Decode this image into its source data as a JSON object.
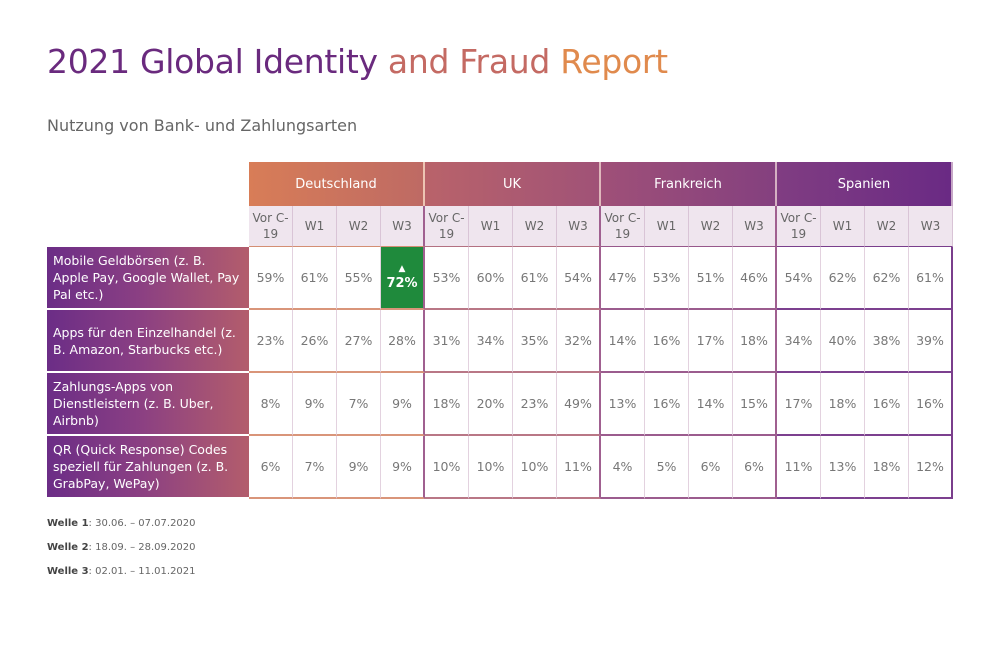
{
  "title": {
    "part1": "2021 Global Identity ",
    "part2": "and Fraud ",
    "part3": "Report"
  },
  "subtitle": "Nutzung von Bank- und Zahlungsarten",
  "countries": [
    "Deutschland",
    "UK",
    "Frankreich",
    "Spanien"
  ],
  "waves": [
    "Vor C-19",
    "W1",
    "W2",
    "W3"
  ],
  "rows": [
    {
      "label": "Mobile Geldbörsen (z. B. Apple Pay, Google Wallet, Pay Pal etc.)",
      "values": [
        "59%",
        "61%",
        "55%",
        "72%",
        "53%",
        "60%",
        "61%",
        "54%",
        "47%",
        "53%",
        "51%",
        "46%",
        "54%",
        "62%",
        "62%",
        "61%"
      ]
    },
    {
      "label": "Apps für den Einzelhandel (z. B. Amazon, Starbucks etc.)",
      "values": [
        "23%",
        "26%",
        "27%",
        "28%",
        "31%",
        "34%",
        "35%",
        "32%",
        "14%",
        "16%",
        "17%",
        "18%",
        "34%",
        "40%",
        "38%",
        "39%"
      ]
    },
    {
      "label": "Zahlungs-Apps von Dienstleistern (z. B. Uber, Airbnb)",
      "values": [
        "8%",
        "9%",
        "7%",
        "9%",
        "18%",
        "20%",
        "23%",
        "49%",
        "13%",
        "16%",
        "14%",
        "15%",
        "17%",
        "18%",
        "16%",
        "16%"
      ]
    },
    {
      "label": "QR (Quick Response) Codes speziell für Zahlungen (z. B. GrabPay, WePay)",
      "values": [
        "6%",
        "7%",
        "9%",
        "9%",
        "10%",
        "10%",
        "10%",
        "11%",
        "4%",
        "5%",
        "6%",
        "6%",
        "11%",
        "13%",
        "18%",
        "12%"
      ]
    }
  ],
  "highlight": {
    "row": 0,
    "col": 3,
    "arrow": "▲",
    "color": "#1f8a3c"
  },
  "notes": [
    {
      "label": "Welle 1",
      "text": ": 30.06. – 07.07.2020"
    },
    {
      "label": "Welle 2",
      "text": ": 18.09. – 28.09.2020"
    },
    {
      "label": "Welle 3",
      "text": ": 02.01. – 11.01.2021"
    }
  ],
  "colors": {
    "purple": "#6a2a84",
    "orange": "#e08a4d"
  }
}
